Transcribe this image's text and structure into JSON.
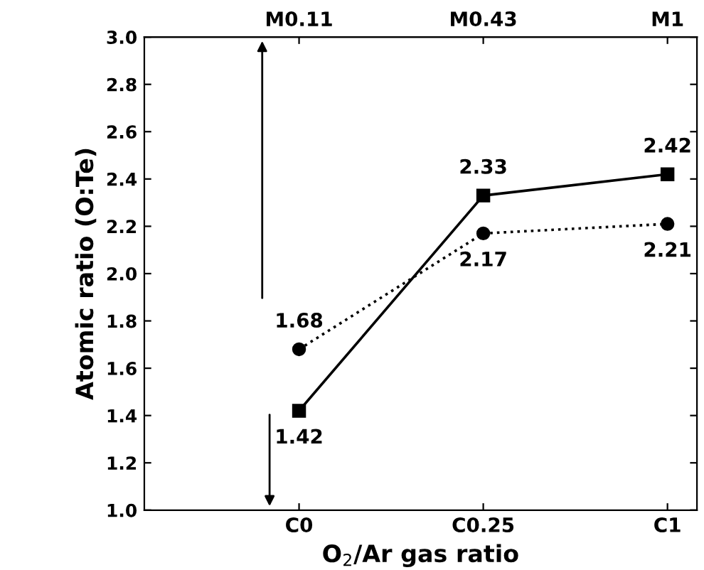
{
  "chart_data": {
    "type": "line",
    "xlabel": "O$_{2}$/Ar gas ratio",
    "ylabel": "Atomic ratio (O:Te)",
    "categories": [
      "C0",
      "C0.25",
      "C1"
    ],
    "annotations": [
      {
        "text": "M0.11",
        "x": "C0"
      },
      {
        "text": "M0.43",
        "x": "C0.25"
      },
      {
        "text": "M1",
        "x": "C1"
      }
    ],
    "series": [
      {
        "color": "#000000",
        "values": [
          1.42,
          2.33,
          2.42
        ],
        "marker": "square",
        "line_style": "solid"
      },
      {
        "color": "#000000",
        "values": [
          1.68,
          2.17,
          2.21
        ],
        "marker": "circle",
        "line_style": "dotted"
      }
    ],
    "ylim": [
      1.0,
      3.0
    ],
    "yticks": [
      {
        "value": 1.0,
        "label": "1.0"
      },
      1.2,
      1.4,
      1.6,
      1.8,
      {
        "value": 2.0,
        "label": "2.0"
      },
      2.2,
      2.4,
      2.6,
      2.8,
      {
        "value": 3.0,
        "label": "3.0"
      }
    ],
    "data_labels": true,
    "grid": false,
    "legend": false
  }
}
